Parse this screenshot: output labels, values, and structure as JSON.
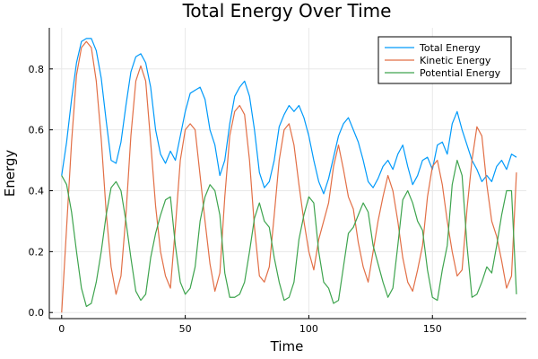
{
  "chart_data": {
    "type": "line",
    "title": "Total Energy Over Time",
    "xlabel": "Time",
    "ylabel": "Energy",
    "xlim": [
      -5,
      188
    ],
    "ylim": [
      -0.02,
      0.935
    ],
    "xticks": [
      0,
      50,
      100,
      150
    ],
    "yticks": [
      0.0,
      0.2,
      0.4,
      0.6,
      0.8
    ],
    "xtick_labels": [
      "0",
      "50",
      "100",
      "150"
    ],
    "ytick_labels": [
      "0.0",
      "0.2",
      "0.4",
      "0.6",
      "0.8"
    ],
    "grid": true,
    "legend_position": "top-right",
    "series": [
      {
        "name": "Total Energy",
        "color": "#009AFA",
        "x": [
          0,
          2,
          4,
          6,
          8,
          10,
          12,
          14,
          16,
          18,
          20,
          22,
          24,
          26,
          28,
          30,
          32,
          34,
          36,
          38,
          40,
          42,
          44,
          46,
          48,
          50,
          52,
          54,
          56,
          58,
          60,
          62,
          64,
          66,
          68,
          70,
          72,
          74,
          76,
          78,
          80,
          82,
          84,
          86,
          88,
          90,
          92,
          94,
          96,
          98,
          100,
          102,
          104,
          106,
          108,
          110,
          112,
          114,
          116,
          118,
          120,
          122,
          124,
          126,
          128,
          130,
          132,
          134,
          136,
          138,
          140,
          142,
          144,
          146,
          148,
          150,
          152,
          154,
          156,
          158,
          160,
          162,
          164,
          166,
          168,
          170,
          172,
          174,
          176,
          178,
          180,
          182,
          184
        ],
        "y": [
          0.45,
          0.56,
          0.7,
          0.82,
          0.89,
          0.9,
          0.9,
          0.86,
          0.77,
          0.63,
          0.5,
          0.49,
          0.56,
          0.68,
          0.79,
          0.84,
          0.85,
          0.82,
          0.74,
          0.6,
          0.52,
          0.49,
          0.53,
          0.5,
          0.58,
          0.66,
          0.72,
          0.73,
          0.74,
          0.7,
          0.6,
          0.55,
          0.45,
          0.5,
          0.62,
          0.71,
          0.74,
          0.76,
          0.71,
          0.6,
          0.46,
          0.41,
          0.43,
          0.5,
          0.61,
          0.65,
          0.68,
          0.66,
          0.68,
          0.64,
          0.58,
          0.5,
          0.43,
          0.39,
          0.44,
          0.51,
          0.58,
          0.62,
          0.64,
          0.6,
          0.56,
          0.5,
          0.43,
          0.41,
          0.44,
          0.48,
          0.5,
          0.47,
          0.52,
          0.55,
          0.48,
          0.42,
          0.45,
          0.5,
          0.51,
          0.47,
          0.55,
          0.56,
          0.52,
          0.62,
          0.66,
          0.6,
          0.55,
          0.5,
          0.47,
          0.43,
          0.45,
          0.43,
          0.48,
          0.5,
          0.47,
          0.52,
          0.51
        ]
      },
      {
        "name": "Kinetic Energy",
        "color": "#E26F46",
        "x": [
          0,
          2,
          4,
          6,
          8,
          10,
          12,
          14,
          16,
          18,
          20,
          22,
          24,
          26,
          28,
          30,
          32,
          34,
          36,
          38,
          40,
          42,
          44,
          46,
          48,
          50,
          52,
          54,
          56,
          58,
          60,
          62,
          64,
          66,
          68,
          70,
          72,
          74,
          76,
          78,
          80,
          82,
          84,
          86,
          88,
          90,
          92,
          94,
          96,
          98,
          100,
          102,
          104,
          106,
          108,
          110,
          112,
          114,
          116,
          118,
          120,
          122,
          124,
          126,
          128,
          130,
          132,
          134,
          136,
          138,
          140,
          142,
          144,
          146,
          148,
          150,
          152,
          154,
          156,
          158,
          160,
          162,
          164,
          166,
          168,
          170,
          172,
          174,
          176,
          178,
          180,
          182,
          184
        ],
        "y": [
          0.0,
          0.28,
          0.56,
          0.78,
          0.87,
          0.89,
          0.87,
          0.76,
          0.57,
          0.33,
          0.15,
          0.06,
          0.12,
          0.32,
          0.58,
          0.76,
          0.81,
          0.76,
          0.56,
          0.35,
          0.2,
          0.12,
          0.08,
          0.28,
          0.5,
          0.6,
          0.62,
          0.6,
          0.45,
          0.3,
          0.16,
          0.07,
          0.13,
          0.38,
          0.58,
          0.66,
          0.68,
          0.65,
          0.5,
          0.28,
          0.12,
          0.1,
          0.15,
          0.32,
          0.5,
          0.6,
          0.62,
          0.55,
          0.42,
          0.3,
          0.2,
          0.14,
          0.24,
          0.3,
          0.36,
          0.48,
          0.55,
          0.47,
          0.38,
          0.34,
          0.23,
          0.15,
          0.1,
          0.2,
          0.3,
          0.38,
          0.45,
          0.4,
          0.3,
          0.18,
          0.1,
          0.07,
          0.14,
          0.22,
          0.38,
          0.48,
          0.5,
          0.42,
          0.3,
          0.2,
          0.12,
          0.14,
          0.34,
          0.5,
          0.61,
          0.58,
          0.42,
          0.3,
          0.25,
          0.17,
          0.08,
          0.12,
          0.46
        ]
      },
      {
        "name": "Potential Energy",
        "color": "#3EA44E",
        "x": [
          0,
          2,
          4,
          6,
          8,
          10,
          12,
          14,
          16,
          18,
          20,
          22,
          24,
          26,
          28,
          30,
          32,
          34,
          36,
          38,
          40,
          42,
          44,
          46,
          48,
          50,
          52,
          54,
          56,
          58,
          60,
          62,
          64,
          66,
          68,
          70,
          72,
          74,
          76,
          78,
          80,
          82,
          84,
          86,
          88,
          90,
          92,
          94,
          96,
          98,
          100,
          102,
          104,
          106,
          108,
          110,
          112,
          114,
          116,
          118,
          120,
          122,
          124,
          126,
          128,
          130,
          132,
          134,
          136,
          138,
          140,
          142,
          144,
          146,
          148,
          150,
          152,
          154,
          156,
          158,
          160,
          162,
          164,
          166,
          168,
          170,
          172,
          174,
          176,
          178,
          180,
          182,
          184
        ],
        "y": [
          0.45,
          0.42,
          0.33,
          0.2,
          0.08,
          0.02,
          0.03,
          0.1,
          0.2,
          0.32,
          0.41,
          0.43,
          0.4,
          0.3,
          0.18,
          0.07,
          0.04,
          0.06,
          0.18,
          0.26,
          0.32,
          0.37,
          0.38,
          0.22,
          0.1,
          0.06,
          0.08,
          0.15,
          0.3,
          0.38,
          0.42,
          0.4,
          0.32,
          0.13,
          0.05,
          0.05,
          0.06,
          0.1,
          0.2,
          0.31,
          0.36,
          0.3,
          0.28,
          0.18,
          0.1,
          0.04,
          0.05,
          0.1,
          0.24,
          0.32,
          0.38,
          0.36,
          0.2,
          0.1,
          0.08,
          0.03,
          0.04,
          0.15,
          0.26,
          0.28,
          0.32,
          0.36,
          0.33,
          0.22,
          0.16,
          0.1,
          0.05,
          0.08,
          0.22,
          0.37,
          0.4,
          0.36,
          0.3,
          0.27,
          0.14,
          0.05,
          0.04,
          0.14,
          0.22,
          0.42,
          0.5,
          0.45,
          0.22,
          0.05,
          0.06,
          0.1,
          0.15,
          0.13,
          0.22,
          0.32,
          0.4,
          0.4,
          0.06
        ]
      }
    ]
  }
}
